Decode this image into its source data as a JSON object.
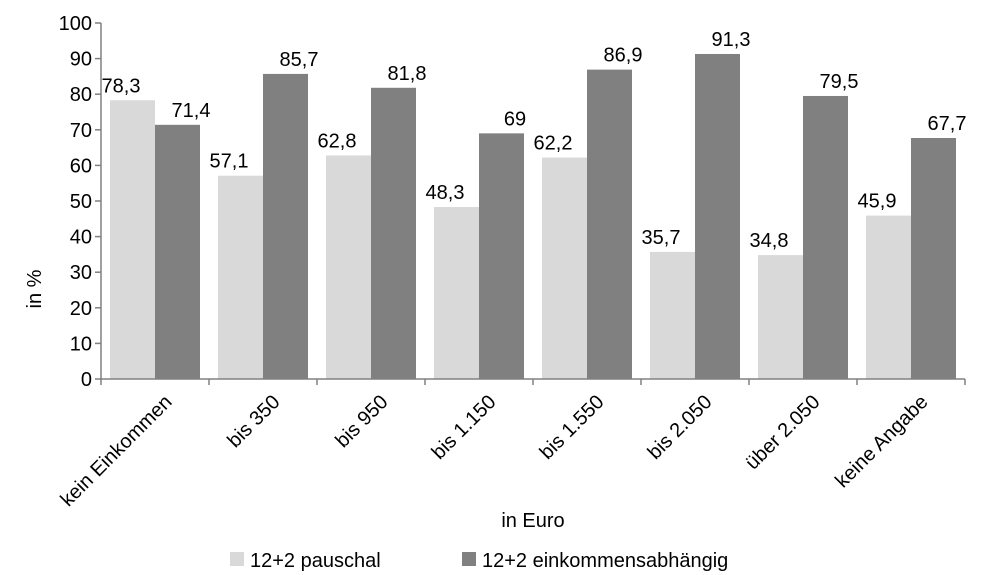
{
  "chart_data": {
    "type": "bar",
    "title": "",
    "xlabel": "in Euro",
    "ylabel": "in %",
    "ylim": [
      0,
      100
    ],
    "ytick_step": 10,
    "grid": false,
    "legend_position": "bottom",
    "categories": [
      "kein Einkommen",
      "bis 350",
      "bis 950",
      "bis 1.150",
      "bis 1.550",
      "bis 2.050",
      "über 2.050",
      "keine Angabe"
    ],
    "series": [
      {
        "name": "12+2 pauschal",
        "color": "#d9d9d9",
        "values": [
          78.3,
          57.1,
          62.8,
          48.3,
          62.2,
          35.7,
          34.8,
          45.9
        ],
        "labels": [
          "78,3",
          "57,1",
          "62,8",
          "48,3",
          "62,2",
          "35,7",
          "34,8",
          "45,9"
        ]
      },
      {
        "name": "12+2 einkommensabhängig",
        "color": "#808080",
        "values": [
          71.4,
          85.7,
          81.8,
          69,
          86.9,
          91.3,
          79.5,
          67.7
        ],
        "labels": [
          "71,4",
          "85,7",
          "81,8",
          "69",
          "86,9",
          "91,3",
          "79,5",
          "67,7"
        ]
      }
    ]
  }
}
